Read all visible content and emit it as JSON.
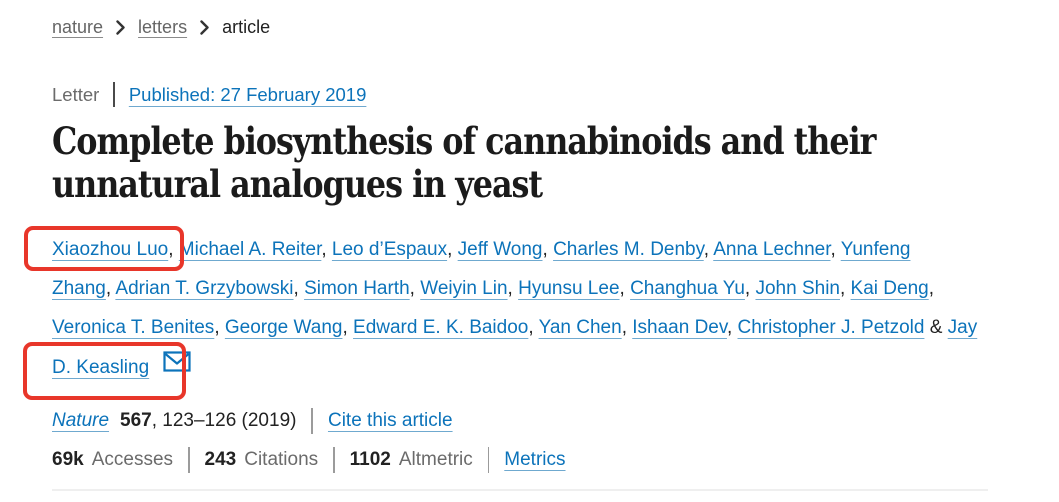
{
  "breadcrumb": {
    "items": [
      {
        "label": "nature",
        "type": "link"
      },
      {
        "label": "letters",
        "type": "link"
      },
      {
        "label": "article",
        "type": "current"
      }
    ]
  },
  "meta": {
    "category": "Letter",
    "published": "Published: 27 February 2019"
  },
  "title": {
    "line1": "Complete biosynthesis of cannabinoids and their",
    "line2": "unnatural analogues in yeast"
  },
  "authors": {
    "lines": [
      [
        {
          "type": "link",
          "text": "Xiaozhou Luo"
        },
        {
          "type": "sep",
          "text": ", "
        },
        {
          "type": "link",
          "text": "Michael A. Reiter"
        },
        {
          "type": "sep",
          "text": ", "
        },
        {
          "type": "link",
          "text": "Leo d’Espaux"
        },
        {
          "type": "sep",
          "text": ", "
        },
        {
          "type": "link",
          "text": "Jeff Wong"
        },
        {
          "type": "sep",
          "text": ", "
        },
        {
          "type": "link",
          "text": "Charles M. Denby"
        },
        {
          "type": "sep",
          "text": ", "
        },
        {
          "type": "link",
          "text": "Anna Lechner"
        },
        {
          "type": "sep",
          "text": ", "
        },
        {
          "type": "link",
          "text": "Yunfeng"
        }
      ],
      [
        {
          "type": "link",
          "text": "Zhang"
        },
        {
          "type": "sep",
          "text": ", "
        },
        {
          "type": "link",
          "text": "Adrian T. Grzybowski"
        },
        {
          "type": "sep",
          "text": ", "
        },
        {
          "type": "link",
          "text": "Simon Harth"
        },
        {
          "type": "sep",
          "text": ", "
        },
        {
          "type": "link",
          "text": "Weiyin Lin"
        },
        {
          "type": "sep",
          "text": ", "
        },
        {
          "type": "link",
          "text": "Hyunsu Lee"
        },
        {
          "type": "sep",
          "text": ", "
        },
        {
          "type": "link",
          "text": "Changhua Yu"
        },
        {
          "type": "sep",
          "text": ", "
        },
        {
          "type": "link",
          "text": "John Shin"
        },
        {
          "type": "sep",
          "text": ", "
        },
        {
          "type": "link",
          "text": "Kai Deng"
        },
        {
          "type": "sep",
          "text": ","
        }
      ],
      [
        {
          "type": "link",
          "text": "Veronica T. Benites"
        },
        {
          "type": "sep",
          "text": ", "
        },
        {
          "type": "link",
          "text": "George Wang"
        },
        {
          "type": "sep",
          "text": ", "
        },
        {
          "type": "link",
          "text": "Edward E. K. Baidoo"
        },
        {
          "type": "sep",
          "text": ", "
        },
        {
          "type": "link",
          "text": "Yan Chen"
        },
        {
          "type": "sep",
          "text": ", "
        },
        {
          "type": "link",
          "text": "Ishaan Dev"
        },
        {
          "type": "sep",
          "text": ", "
        },
        {
          "type": "link",
          "text": "Christopher J. Petzold"
        },
        {
          "type": "sep",
          "text": " & "
        },
        {
          "type": "link",
          "text": "Jay"
        }
      ],
      [
        {
          "type": "link",
          "text": "D. Keasling"
        }
      ]
    ],
    "email_icon": "envelope-icon"
  },
  "citation": {
    "journal": "Nature",
    "volume": "567",
    "pages": ", 123–126 (2019)",
    "cite_link": "Cite this article"
  },
  "metrics": {
    "items": [
      {
        "value": "69k",
        "label": "Accesses"
      },
      {
        "value": "243",
        "label": "Citations"
      },
      {
        "value": "1102",
        "label": "Altmetric"
      }
    ],
    "link": "Metrics"
  },
  "annotations": {
    "color": "#e8362a",
    "boxes": [
      {
        "target": "Xiaozhou Luo"
      },
      {
        "target": "D. Keasling"
      }
    ]
  },
  "colors": {
    "link_blue": "#0c73ba",
    "text_dark": "#222222",
    "text_muted": "#666666",
    "annotation_red": "#e8362a",
    "rule_gray": "#efefef"
  }
}
